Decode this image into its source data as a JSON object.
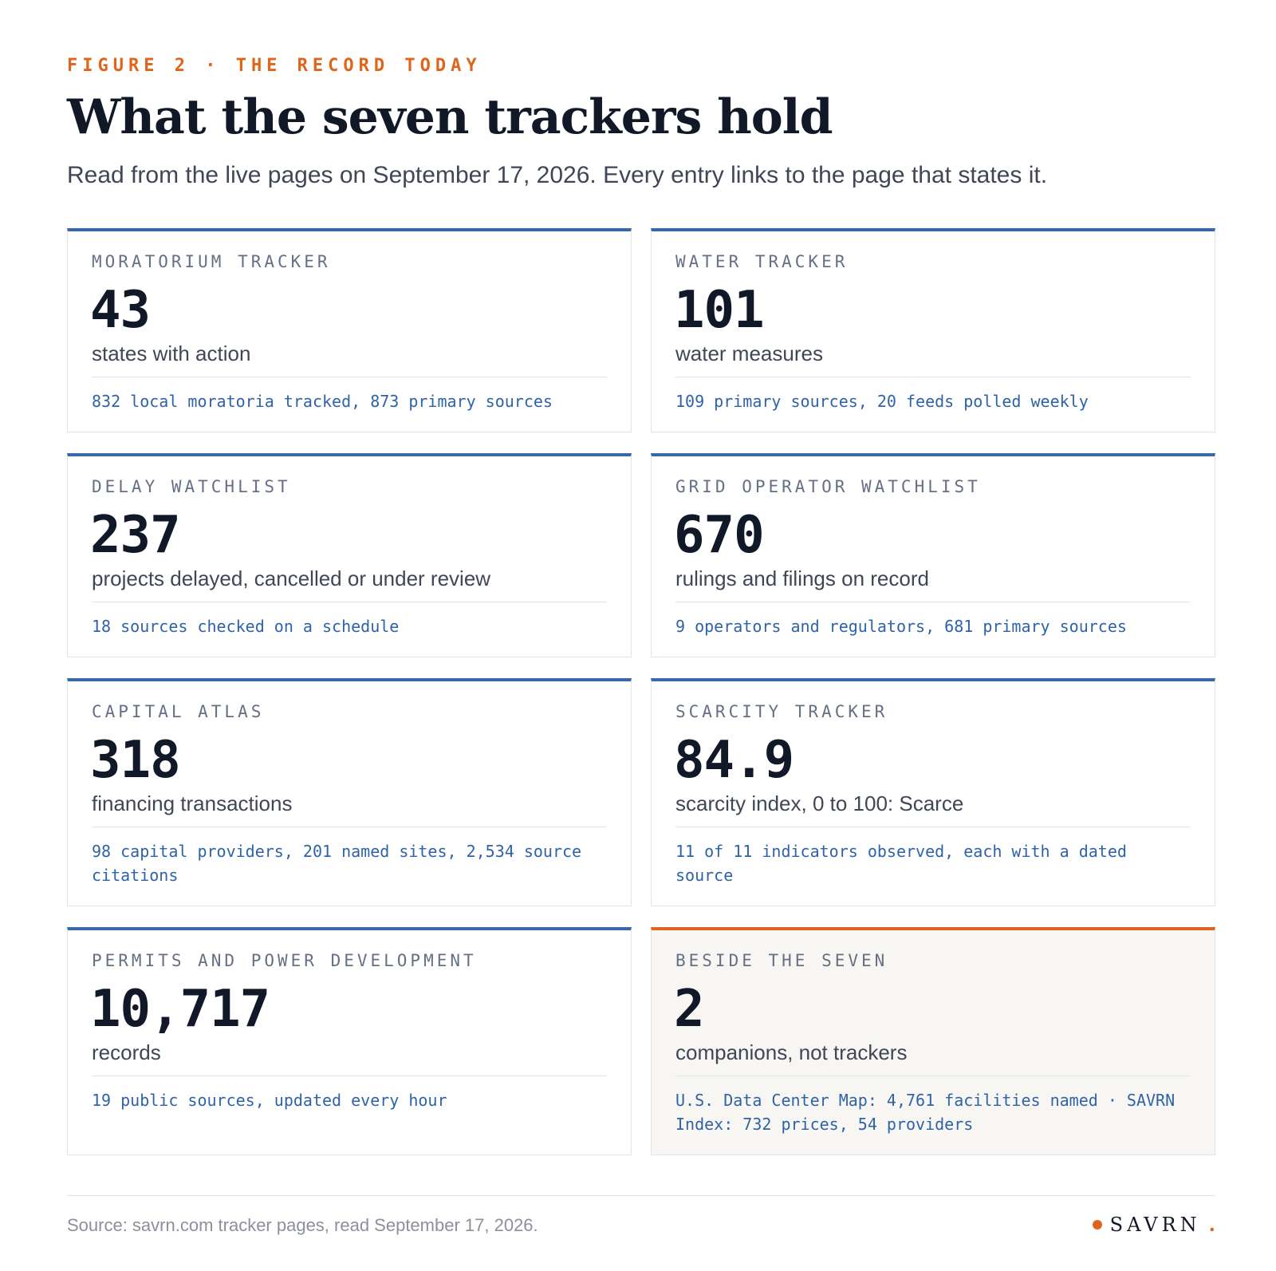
{
  "header": {
    "kicker": "FIGURE 2 · THE RECORD TODAY",
    "title": "What the seven trackers hold",
    "subtitle": "Read from the live pages on September 17, 2026. Every entry links to the page that states it."
  },
  "cards": [
    {
      "label": "MORATORIUM TRACKER",
      "value": "43",
      "desc": "states with action",
      "note": "832 local moratoria tracked, 873 primary sources"
    },
    {
      "label": "WATER TRACKER",
      "value": "101",
      "desc": "water measures",
      "note": "109 primary sources, 20 feeds polled weekly"
    },
    {
      "label": "DELAY WATCHLIST",
      "value": "237",
      "desc": "projects delayed, cancelled or under review",
      "note": "18 sources checked on a schedule"
    },
    {
      "label": "GRID OPERATOR WATCHLIST",
      "value": "670",
      "desc": "rulings and filings on record",
      "note": "9 operators and regulators, 681 primary sources"
    },
    {
      "label": "CAPITAL ATLAS",
      "value": "318",
      "desc": "financing transactions",
      "note": "98 capital providers, 201 named sites, 2,534 source citations"
    },
    {
      "label": "SCARCITY TRACKER",
      "value": "84.9",
      "desc": "scarcity index, 0 to 100: Scarce",
      "note": "11 of 11 indicators observed, each with a dated source"
    },
    {
      "label": "PERMITS AND POWER DEVELOPMENT",
      "value": "10,717",
      "desc": "records",
      "note": "19 public sources, updated every hour"
    },
    {
      "label": "BESIDE THE SEVEN",
      "value": "2",
      "desc": "companions, not trackers",
      "note": "U.S. Data Center Map: 4,761 facilities named · SAVRN Index: 732 prices, 54 providers"
    }
  ],
  "footer": {
    "source": "Source: savrn.com tracker pages, read September 17, 2026.",
    "brand": "SAVRN",
    "brand_period": "."
  },
  "colors": {
    "accent_orange": "#e0651c",
    "accent_blue": "#3a67a8",
    "note_blue": "#2f63a8",
    "alt_card_bg": "#f8f6f2"
  }
}
